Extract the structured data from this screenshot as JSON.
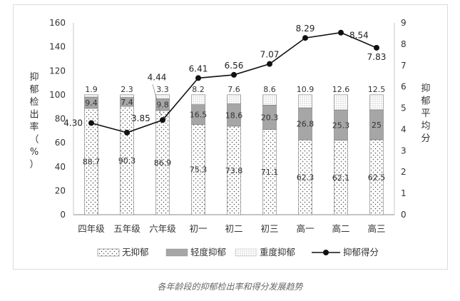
{
  "caption": "各年龄段的抑郁检出率和得分发展趋势",
  "chart_data": {
    "type": "bar+line",
    "categories": [
      "四年级",
      "五年级",
      "六年级",
      "初一",
      "初二",
      "初三",
      "高一",
      "高二",
      "高三"
    ],
    "stacked_series": [
      {
        "name": "无抑郁",
        "values": [
          88.7,
          90.3,
          86.9,
          75.3,
          73.8,
          71.1,
          62.3,
          62.1,
          62.5
        ],
        "fill": "dots"
      },
      {
        "name": "轻度抑郁",
        "values": [
          9.4,
          7.4,
          9.8,
          16.5,
          18.6,
          20.3,
          26.8,
          25.3,
          25
        ],
        "fill": "#a6a6a6"
      },
      {
        "name": "重度抑郁",
        "values": [
          1.9,
          2.3,
          3.3,
          8.2,
          7.6,
          8.6,
          10.9,
          12.6,
          12.5
        ],
        "fill": "fine-dots"
      }
    ],
    "line_series": {
      "name": "抑郁得分",
      "values": [
        4.3,
        3.85,
        4.44,
        6.41,
        6.56,
        7.07,
        8.29,
        8.54,
        7.83
      ],
      "axis": "right"
    },
    "left_axis": {
      "label": "抑郁检出率（%）",
      "ylim": [
        0,
        160
      ],
      "ticks": [
        0,
        20,
        40,
        60,
        80,
        100,
        120,
        140,
        160
      ]
    },
    "right_axis": {
      "label": "抑郁平均分",
      "ylim": [
        0,
        9
      ],
      "ticks": [
        0,
        1,
        2,
        3,
        4,
        5,
        6,
        7,
        8,
        9
      ]
    },
    "legend_position": "bottom",
    "grid": false
  }
}
